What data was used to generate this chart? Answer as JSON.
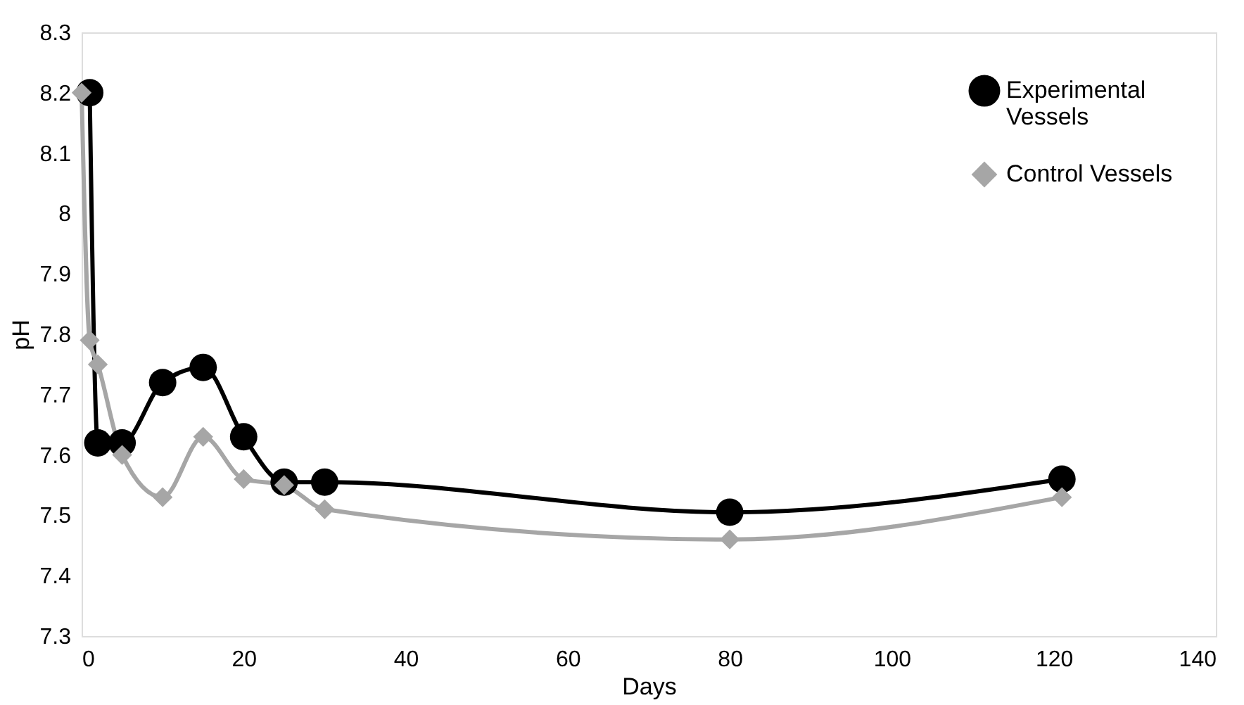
{
  "chart_data": {
    "type": "line",
    "xlabel": "Days",
    "ylabel": "pH",
    "xlim": [
      0,
      140
    ],
    "xticks": [
      0,
      20,
      40,
      60,
      80,
      100,
      120,
      140
    ],
    "ylim": [
      7.3,
      8.3
    ],
    "yticks": [
      7.3,
      7.4,
      7.5,
      7.6,
      7.7,
      7.8,
      7.9,
      8,
      8.1,
      8.2,
      8.3
    ],
    "grid": false,
    "legend": "top right",
    "line_style": "solid",
    "series": [
      {
        "name": "Experimental Vessels",
        "color": "#000000",
        "marker": "circle",
        "x": [
          1,
          2,
          5,
          10,
          15,
          20,
          25,
          30,
          80,
          121
        ],
        "values": [
          8.2,
          7.62,
          7.62,
          7.72,
          7.745,
          7.63,
          7.555,
          7.555,
          7.505,
          7.56
        ]
      },
      {
        "name": "Control Vessels",
        "color": "#a6a6a6",
        "marker": "diamond",
        "x": [
          0,
          1,
          2,
          5,
          10,
          15,
          20,
          25,
          30,
          80,
          121
        ],
        "values": [
          8.2,
          7.79,
          7.75,
          7.6,
          7.53,
          7.63,
          7.56,
          7.55,
          7.51,
          7.46,
          7.53
        ]
      }
    ]
  }
}
